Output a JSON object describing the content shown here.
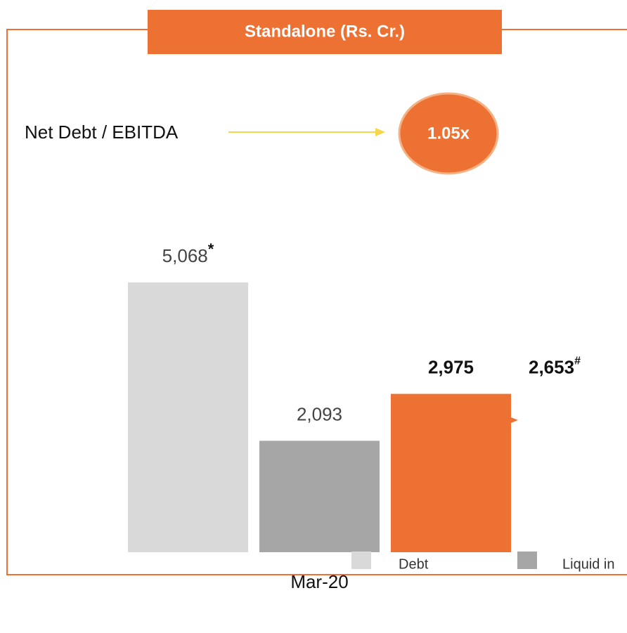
{
  "chart_data": {
    "type": "bar",
    "title": "Standalone (Rs. Cr.)",
    "categories": [
      "Mar-20"
    ],
    "series": [
      {
        "name": "Debt",
        "color": "#d9d9d9",
        "values": [
          5068
        ],
        "value_labels": [
          "5,068"
        ],
        "footnote": "*"
      },
      {
        "name": "Liquid in",
        "color": "#a6a6a6",
        "values": [
          2093
        ],
        "value_labels": [
          "2,093"
        ]
      },
      {
        "color": "#ed7133",
        "values": [
          2975
        ],
        "value_labels": [
          "2,975"
        ]
      }
    ],
    "annotation": {
      "value": 2653,
      "label": "2,653",
      "footnote": "#"
    },
    "ratio": {
      "label": "Net Debt / EBITDA",
      "value": 1.05,
      "value_label": "1.05x"
    }
  }
}
